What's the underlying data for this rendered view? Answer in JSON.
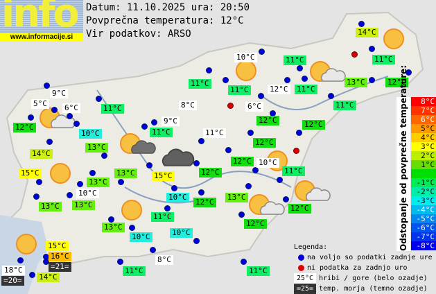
{
  "logo": {
    "text": "info",
    "url": "www.informacije.si"
  },
  "header": {
    "date_line": "Datum: 11.10.2025 ura: 20:50",
    "avg_line": "Povprečna temperatura: 12°C",
    "source_line": "Vir podatkov: ARSO"
  },
  "colors": {
    "t10": "#22eedd",
    "t11": "#11ee66",
    "t12": "#11dd11",
    "t13": "#66ee11",
    "t14": "#ccee11",
    "t15": "#ffff00",
    "t16": "#ffbb00",
    "mountain": "#ffffff",
    "sea": "#333333",
    "dot_ok": "#0000dd",
    "dot_missing": "#dd0000"
  },
  "labels": [
    {
      "text": "14°C",
      "type": "t14"
    },
    {
      "text": "10°C",
      "type": "mountain"
    },
    {
      "text": "11°C",
      "type": "t11"
    },
    {
      "text": "11°C",
      "type": "t11"
    },
    {
      "text": "11°C",
      "type": "t11"
    },
    {
      "text": "11°C",
      "type": "t11"
    },
    {
      "text": "12°C",
      "type": "mountain"
    },
    {
      "text": "11°C",
      "type": "t11"
    },
    {
      "text": "13°C",
      "type": "t13"
    },
    {
      "text": "12°C",
      "type": "t12"
    },
    {
      "text": "9°C",
      "type": "mountain"
    },
    {
      "text": "5°C",
      "type": "mountain"
    },
    {
      "text": "6°C",
      "type": "mountain"
    },
    {
      "text": "11°C",
      "type": "t11"
    },
    {
      "text": "8°C",
      "type": "mountain"
    },
    {
      "text": "6°C",
      "type": "mountain"
    },
    {
      "text": "11°C",
      "type": "t11"
    },
    {
      "text": "12°C",
      "type": "t12"
    },
    {
      "text": "9°C",
      "type": "mountain"
    },
    {
      "text": "12°C",
      "type": "t12"
    },
    {
      "text": "12°C",
      "type": "t12"
    },
    {
      "text": "10°C",
      "type": "t10"
    },
    {
      "text": "11°C",
      "type": "t11"
    },
    {
      "text": "11°C",
      "type": "mountain"
    },
    {
      "text": "13°C",
      "type": "t13"
    },
    {
      "text": "12°C",
      "type": "t12"
    },
    {
      "text": "14°C",
      "type": "t14"
    },
    {
      "text": "12°C",
      "type": "t12"
    },
    {
      "text": "10°C",
      "type": "mountain"
    },
    {
      "text": "11°C",
      "type": "t11"
    },
    {
      "text": "13°C",
      "type": "t13"
    },
    {
      "text": "12°C",
      "type": "t12"
    },
    {
      "text": "15°C",
      "type": "t15"
    },
    {
      "text": "15°C",
      "type": "t15"
    },
    {
      "text": "13°C",
      "type": "t13"
    },
    {
      "text": "10°C",
      "type": "mountain"
    },
    {
      "text": "13°C",
      "type": "t13"
    },
    {
      "text": "13°C",
      "type": "t13"
    },
    {
      "text": "10°C",
      "type": "t10"
    },
    {
      "text": "12°C",
      "type": "t12"
    },
    {
      "text": "13°C",
      "type": "t13"
    },
    {
      "text": "12°C",
      "type": "t12"
    },
    {
      "text": "11°C",
      "type": "t11"
    },
    {
      "text": "12°C",
      "type": "t12"
    },
    {
      "text": "13°C",
      "type": "t13"
    },
    {
      "text": "10°C",
      "type": "t10"
    },
    {
      "text": "10°C",
      "type": "t10"
    },
    {
      "text": "15°C",
      "type": "t15"
    },
    {
      "text": "16°C",
      "type": "t16"
    },
    {
      "text": "=21=",
      "type": "sea"
    },
    {
      "text": "8°C",
      "type": "mountain"
    },
    {
      "text": "18°C",
      "type": "mountain"
    },
    {
      "text": "=20=",
      "type": "sea"
    },
    {
      "text": "14°C",
      "type": "t14"
    },
    {
      "text": "11°C",
      "type": "t11"
    },
    {
      "text": "11°C",
      "type": "t11"
    }
  ],
  "weather_icons": [
    "sun-cloud",
    "sun-dark-cloud",
    "dark-cloud",
    "sun",
    "sun",
    "sun",
    "sun",
    "sun-cloud",
    "sun",
    "sun-cloud",
    "sun-cloud",
    "sun"
  ],
  "colorbar": {
    "title": "Odstopanje od povprečne temperature:",
    "steps": [
      {
        "label": "8°C",
        "color": "#ff0000"
      },
      {
        "label": "7°C",
        "color": "#ff3300"
      },
      {
        "label": "6°C",
        "color": "#ff6600"
      },
      {
        "label": "5°C",
        "color": "#ff9900"
      },
      {
        "label": "4°C",
        "color": "#ffcc00"
      },
      {
        "label": "3°C",
        "color": "#ffff00"
      },
      {
        "label": "2°C",
        "color": "#bbee00"
      },
      {
        "label": "1°C",
        "color": "#66dd00"
      },
      {
        "label": "",
        "color": "#00dd00"
      },
      {
        "label": "-1°C",
        "color": "#00ee55"
      },
      {
        "label": "-2°C",
        "color": "#00eeaa"
      },
      {
        "label": "-3°C",
        "color": "#00eeee"
      },
      {
        "label": "-4°C",
        "color": "#00bbee"
      },
      {
        "label": "-5°C",
        "color": "#0088ee"
      },
      {
        "label": "-6°C",
        "color": "#0055ee"
      },
      {
        "label": "-7°C",
        "color": "#0033ee"
      },
      {
        "label": "-8°C",
        "color": "#0000ee"
      }
    ]
  },
  "legend": {
    "title": "Legenda:",
    "ok": "na voljo so podatki zadnje ure",
    "missing": "ni podatka za zadnjo uro",
    "mountain_sample": "25°C",
    "mountain_text": "hribi / gore (belo ozadje)",
    "sea_sample": "=25=",
    "sea_text": "temp. morja (temno ozadje)"
  }
}
